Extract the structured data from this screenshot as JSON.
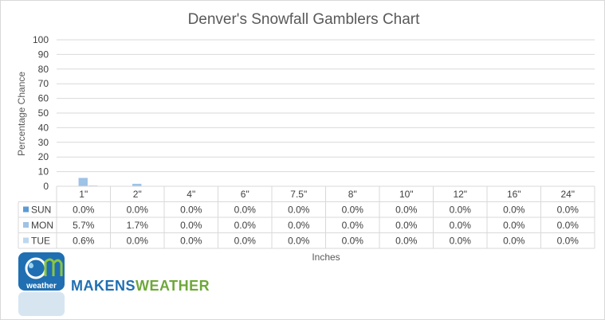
{
  "chart_data": {
    "type": "bar",
    "title": "Denver's Snowfall Gamblers Chart",
    "xlabel": "Inches",
    "ylabel": "Percentage Chance",
    "ylim": [
      0,
      100
    ],
    "yticks": [
      0,
      10,
      20,
      30,
      40,
      50,
      60,
      70,
      80,
      90,
      100
    ],
    "grid": true,
    "legend": "data-table",
    "categories": [
      "1\"",
      "2\"",
      "4\"",
      "6\"",
      "7.5\"",
      "8\"",
      "10\"",
      "12\"",
      "16\"",
      "24\""
    ],
    "series": [
      {
        "name": "SUN",
        "color": "#5b9bd5",
        "values": [
          0.0,
          0.0,
          0.0,
          0.0,
          0.0,
          0.0,
          0.0,
          0.0,
          0.0,
          0.0
        ],
        "labels": [
          "0.0%",
          "0.0%",
          "0.0%",
          "0.0%",
          "0.0%",
          "0.0%",
          "0.0%",
          "0.0%",
          "0.0%",
          "0.0%"
        ]
      },
      {
        "name": "MON",
        "color": "#9dc3e6",
        "values": [
          5.7,
          1.7,
          0.0,
          0.0,
          0.0,
          0.0,
          0.0,
          0.0,
          0.0,
          0.0
        ],
        "labels": [
          "5.7%",
          "1.7%",
          "0.0%",
          "0.0%",
          "0.0%",
          "0.0%",
          "0.0%",
          "0.0%",
          "0.0%",
          "0.0%"
        ]
      },
      {
        "name": "TUE",
        "color": "#bdd7ee",
        "values": [
          0.6,
          0.0,
          0.0,
          0.0,
          0.0,
          0.0,
          0.0,
          0.0,
          0.0,
          0.0
        ],
        "labels": [
          "0.6%",
          "0.0%",
          "0.0%",
          "0.0%",
          "0.0%",
          "0.0%",
          "0.0%",
          "0.0%",
          "0.0%",
          "0.0%"
        ]
      }
    ]
  },
  "logo": {
    "badge_text": "weather",
    "wordmark_part1": "MAKENS",
    "wordmark_part2": "WEATHER",
    "badge_color": "#1f6fb2",
    "wordmark_color1": "#1f6fb2",
    "wordmark_color2": "#6fa83a"
  }
}
